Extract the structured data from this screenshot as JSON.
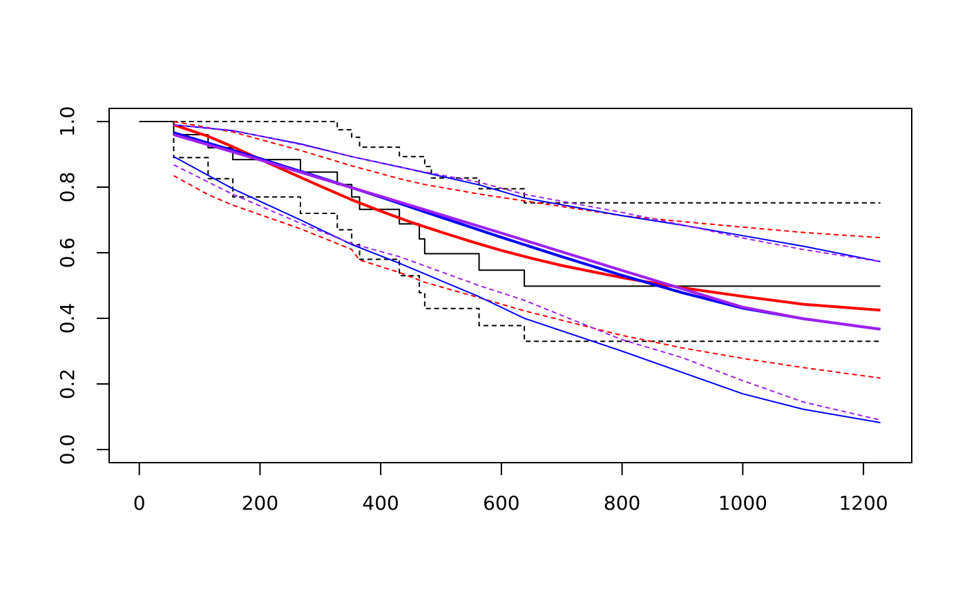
{
  "chart_data": {
    "type": "line",
    "title": "",
    "xlabel": "",
    "ylabel": "",
    "xlim": [
      -50,
      1280
    ],
    "ylim": [
      -0.04,
      1.04
    ],
    "x_ticks": [
      0,
      200,
      400,
      600,
      800,
      1000,
      1200
    ],
    "y_ticks": [
      0.0,
      0.2,
      0.4,
      0.6,
      0.8,
      1.0
    ],
    "x_tick_labels": [
      "0",
      "200",
      "400",
      "600",
      "800",
      "1000",
      "1200"
    ],
    "y_tick_labels": [
      "0.0",
      "0.2",
      "0.4",
      "0.6",
      "0.8",
      "1.0"
    ],
    "grid": false,
    "series": [
      {
        "color": "#000000",
        "style": "step",
        "dash": false,
        "width": 2,
        "points": [
          [
            0,
            1.0
          ],
          [
            57,
            1.0
          ],
          [
            57,
            0.96
          ],
          [
            114,
            0.96
          ],
          [
            114,
            0.92
          ],
          [
            155,
            0.92
          ],
          [
            155,
            0.884
          ],
          [
            267,
            0.884
          ],
          [
            267,
            0.846
          ],
          [
            328,
            0.846
          ],
          [
            328,
            0.808
          ],
          [
            352,
            0.808
          ],
          [
            352,
            0.77
          ],
          [
            365,
            0.77
          ],
          [
            365,
            0.732
          ],
          [
            431,
            0.732
          ],
          [
            431,
            0.688
          ],
          [
            464,
            0.688
          ],
          [
            464,
            0.642
          ],
          [
            473,
            0.642
          ],
          [
            473,
            0.597
          ],
          [
            563,
            0.597
          ],
          [
            563,
            0.547
          ],
          [
            638,
            0.547
          ],
          [
            638,
            0.498
          ],
          [
            1228,
            0.498
          ]
        ]
      },
      {
        "color": "#000000",
        "style": "step",
        "dash": true,
        "width": 2,
        "points": [
          [
            0,
            1.0
          ],
          [
            328,
            1.0
          ],
          [
            328,
            0.975
          ],
          [
            352,
            0.975
          ],
          [
            352,
            0.952
          ],
          [
            365,
            0.952
          ],
          [
            365,
            0.922
          ],
          [
            431,
            0.922
          ],
          [
            431,
            0.893
          ],
          [
            473,
            0.893
          ],
          [
            473,
            0.863
          ],
          [
            484,
            0.863
          ],
          [
            484,
            0.828
          ],
          [
            563,
            0.828
          ],
          [
            563,
            0.795
          ],
          [
            638,
            0.795
          ],
          [
            638,
            0.752
          ],
          [
            1228,
            0.752
          ]
        ]
      },
      {
        "color": "#000000",
        "style": "step",
        "dash": true,
        "width": 2,
        "points": [
          [
            57,
            1.0
          ],
          [
            57,
            0.89
          ],
          [
            114,
            0.89
          ],
          [
            114,
            0.826
          ],
          [
            155,
            0.826
          ],
          [
            155,
            0.77
          ],
          [
            267,
            0.77
          ],
          [
            267,
            0.72
          ],
          [
            328,
            0.72
          ],
          [
            328,
            0.67
          ],
          [
            352,
            0.67
          ],
          [
            352,
            0.625
          ],
          [
            365,
            0.625
          ],
          [
            365,
            0.58
          ],
          [
            431,
            0.58
          ],
          [
            431,
            0.53
          ],
          [
            464,
            0.53
          ],
          [
            464,
            0.478
          ],
          [
            473,
            0.478
          ],
          [
            473,
            0.43
          ],
          [
            563,
            0.43
          ],
          [
            563,
            0.378
          ],
          [
            638,
            0.378
          ],
          [
            638,
            0.33
          ],
          [
            1228,
            0.33
          ]
        ]
      },
      {
        "color": "#ff0000",
        "style": "line",
        "dash": false,
        "width": 4,
        "points": [
          [
            57,
            0.99
          ],
          [
            114,
            0.955
          ],
          [
            155,
            0.923
          ],
          [
            200,
            0.885
          ],
          [
            267,
            0.83
          ],
          [
            300,
            0.803
          ],
          [
            350,
            0.763
          ],
          [
            400,
            0.727
          ],
          [
            450,
            0.693
          ],
          [
            500,
            0.663
          ],
          [
            550,
            0.634
          ],
          [
            600,
            0.607
          ],
          [
            650,
            0.583
          ],
          [
            700,
            0.561
          ],
          [
            800,
            0.524
          ],
          [
            900,
            0.493
          ],
          [
            1000,
            0.467
          ],
          [
            1100,
            0.443
          ],
          [
            1228,
            0.425
          ]
        ]
      },
      {
        "color": "#ff0000",
        "style": "line",
        "dash": true,
        "width": 2,
        "points": [
          [
            57,
            1.0
          ],
          [
            155,
            0.968
          ],
          [
            267,
            0.912
          ],
          [
            352,
            0.865
          ],
          [
            431,
            0.826
          ],
          [
            473,
            0.808
          ],
          [
            563,
            0.779
          ],
          [
            638,
            0.758
          ],
          [
            800,
            0.713
          ],
          [
            900,
            0.695
          ],
          [
            1000,
            0.678
          ],
          [
            1100,
            0.662
          ],
          [
            1228,
            0.646
          ]
        ]
      },
      {
        "color": "#ff0000",
        "style": "line",
        "dash": true,
        "width": 2,
        "points": [
          [
            57,
            0.835
          ],
          [
            114,
            0.777
          ],
          [
            155,
            0.745
          ],
          [
            267,
            0.673
          ],
          [
            352,
            0.61
          ],
          [
            365,
            0.578
          ],
          [
            431,
            0.54
          ],
          [
            473,
            0.51
          ],
          [
            563,
            0.463
          ],
          [
            638,
            0.423
          ],
          [
            800,
            0.348
          ],
          [
            900,
            0.31
          ],
          [
            1000,
            0.278
          ],
          [
            1100,
            0.25
          ],
          [
            1228,
            0.218
          ]
        ]
      },
      {
        "color": "#0000ff",
        "style": "line",
        "dash": false,
        "width": 4,
        "points": [
          [
            57,
            0.966
          ],
          [
            200,
            0.887
          ],
          [
            300,
            0.829
          ],
          [
            400,
            0.77
          ],
          [
            500,
            0.708
          ],
          [
            600,
            0.647
          ],
          [
            700,
            0.588
          ],
          [
            800,
            0.531
          ],
          [
            900,
            0.478
          ],
          [
            1000,
            0.431
          ],
          [
            1100,
            0.399
          ],
          [
            1228,
            0.367
          ]
        ]
      },
      {
        "color": "#0000ff",
        "style": "line",
        "dash": false,
        "width": 2,
        "points": [
          [
            57,
            0.99
          ],
          [
            155,
            0.972
          ],
          [
            267,
            0.932
          ],
          [
            352,
            0.893
          ],
          [
            431,
            0.862
          ],
          [
            563,
            0.807
          ],
          [
            638,
            0.767
          ],
          [
            800,
            0.713
          ],
          [
            900,
            0.684
          ],
          [
            1000,
            0.652
          ],
          [
            1100,
            0.62
          ],
          [
            1228,
            0.573
          ]
        ]
      },
      {
        "color": "#0000ff",
        "style": "line",
        "dash": false,
        "width": 2,
        "points": [
          [
            57,
            0.893
          ],
          [
            155,
            0.795
          ],
          [
            267,
            0.7
          ],
          [
            352,
            0.625
          ],
          [
            431,
            0.568
          ],
          [
            563,
            0.466
          ],
          [
            638,
            0.4
          ],
          [
            800,
            0.3
          ],
          [
            900,
            0.235
          ],
          [
            1000,
            0.17
          ],
          [
            1100,
            0.123
          ],
          [
            1228,
            0.082
          ]
        ]
      },
      {
        "color": "#a020f0",
        "style": "line",
        "dash": false,
        "width": 4,
        "points": [
          [
            57,
            0.96
          ],
          [
            200,
            0.883
          ],
          [
            300,
            0.827
          ],
          [
            400,
            0.772
          ],
          [
            500,
            0.716
          ],
          [
            600,
            0.66
          ],
          [
            700,
            0.603
          ],
          [
            800,
            0.546
          ],
          [
            900,
            0.49
          ],
          [
            1000,
            0.434
          ],
          [
            1100,
            0.399
          ],
          [
            1228,
            0.367
          ]
        ]
      },
      {
        "color": "#a020f0",
        "style": "line",
        "dash": true,
        "width": 2,
        "points": [
          [
            57,
            0.99
          ],
          [
            155,
            0.973
          ],
          [
            267,
            0.93
          ],
          [
            352,
            0.893
          ],
          [
            431,
            0.861
          ],
          [
            563,
            0.815
          ],
          [
            638,
            0.778
          ],
          [
            800,
            0.723
          ],
          [
            900,
            0.685
          ],
          [
            1000,
            0.645
          ],
          [
            1100,
            0.61
          ],
          [
            1228,
            0.573
          ]
        ]
      },
      {
        "color": "#a020f0",
        "style": "line",
        "dash": true,
        "width": 2,
        "points": [
          [
            57,
            0.868
          ],
          [
            155,
            0.778
          ],
          [
            267,
            0.69
          ],
          [
            352,
            0.628
          ],
          [
            431,
            0.588
          ],
          [
            563,
            0.5
          ],
          [
            638,
            0.455
          ],
          [
            800,
            0.335
          ],
          [
            900,
            0.28
          ],
          [
            1000,
            0.21
          ],
          [
            1100,
            0.145
          ],
          [
            1228,
            0.09
          ]
        ]
      }
    ]
  }
}
